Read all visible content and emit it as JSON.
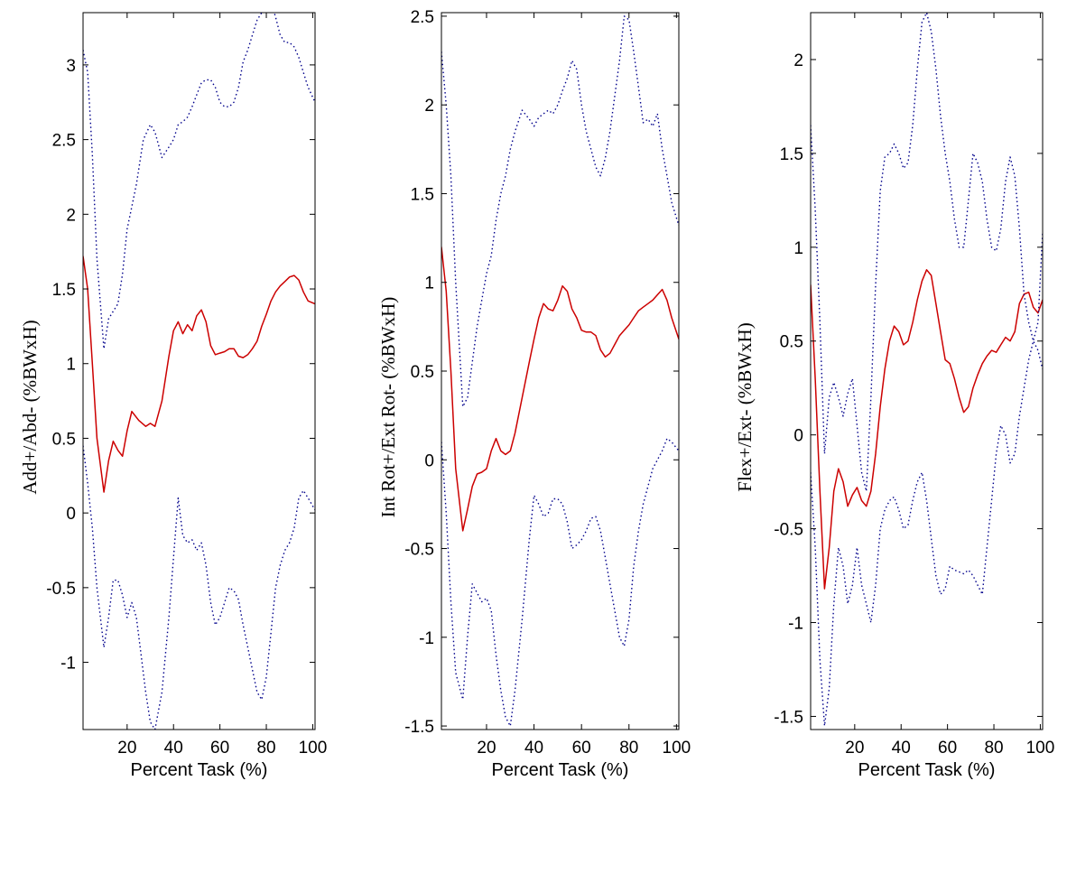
{
  "chart_data": [
    {
      "type": "line",
      "xlabel": "Percent Task (%)",
      "ylabel": "Add+/Abd- (%BWxH)",
      "xlim": [
        1,
        101
      ],
      "ylim": [
        -1.45,
        3.35
      ],
      "xticks": [
        20,
        40,
        60,
        80,
        100
      ],
      "yticks": [
        -1,
        -0.5,
        0,
        0.5,
        1,
        1.5,
        2,
        2.5,
        3
      ],
      "series": [
        {
          "style": "solid",
          "color": "#cc0000",
          "x": [
            1,
            3,
            5,
            7,
            10,
            12,
            14,
            16,
            18,
            20,
            22,
            25,
            28,
            30,
            32,
            35,
            38,
            40,
            42,
            44,
            46,
            48,
            50,
            52,
            54,
            56,
            58,
            60,
            62,
            64,
            66,
            68,
            70,
            72,
            74,
            76,
            78,
            80,
            82,
            84,
            86,
            88,
            90,
            92,
            94,
            96,
            98,
            101
          ],
          "y": [
            1.72,
            1.5,
            1.0,
            0.5,
            0.14,
            0.35,
            0.48,
            0.42,
            0.38,
            0.55,
            0.68,
            0.62,
            0.58,
            0.6,
            0.58,
            0.75,
            1.05,
            1.22,
            1.28,
            1.2,
            1.26,
            1.22,
            1.32,
            1.36,
            1.28,
            1.12,
            1.06,
            1.07,
            1.08,
            1.1,
            1.1,
            1.05,
            1.04,
            1.06,
            1.1,
            1.15,
            1.25,
            1.33,
            1.42,
            1.48,
            1.52,
            1.55,
            1.58,
            1.59,
            1.56,
            1.48,
            1.42,
            1.4
          ]
        },
        {
          "style": "dotted",
          "color": "#00008b",
          "x": [
            1,
            3,
            5,
            7,
            10,
            12,
            14,
            16,
            18,
            20,
            22,
            24,
            27,
            30,
            32,
            35,
            38,
            40,
            42,
            44,
            46,
            48,
            50,
            52,
            54,
            56,
            58,
            60,
            62,
            64,
            66,
            68,
            70,
            72,
            74,
            76,
            78,
            80,
            82,
            84,
            86,
            88,
            90,
            92,
            94,
            96,
            98,
            101
          ],
          "y": [
            3.1,
            2.95,
            2.4,
            1.7,
            1.1,
            1.3,
            1.35,
            1.4,
            1.6,
            1.9,
            2.05,
            2.2,
            2.5,
            2.6,
            2.55,
            2.38,
            2.45,
            2.5,
            2.6,
            2.62,
            2.65,
            2.72,
            2.8,
            2.88,
            2.9,
            2.9,
            2.85,
            2.75,
            2.72,
            2.72,
            2.75,
            2.85,
            3.02,
            3.1,
            3.2,
            3.3,
            3.35,
            3.4,
            3.42,
            3.32,
            3.2,
            3.15,
            3.15,
            3.12,
            3.05,
            2.95,
            2.85,
            2.75
          ]
        },
        {
          "style": "dotted",
          "color": "#00008b",
          "x": [
            1,
            3,
            5,
            7,
            10,
            12,
            14,
            16,
            18,
            20,
            22,
            24,
            26,
            28,
            30,
            32,
            35,
            38,
            40,
            42,
            44,
            46,
            48,
            50,
            52,
            54,
            56,
            58,
            60,
            62,
            64,
            66,
            68,
            70,
            72,
            74,
            76,
            78,
            80,
            82,
            84,
            86,
            88,
            90,
            92,
            94,
            96,
            98,
            101
          ],
          "y": [
            0.45,
            0.2,
            -0.1,
            -0.5,
            -0.9,
            -0.7,
            -0.45,
            -0.45,
            -0.55,
            -0.7,
            -0.6,
            -0.7,
            -0.95,
            -1.2,
            -1.4,
            -1.45,
            -1.2,
            -0.7,
            -0.3,
            0.1,
            -0.15,
            -0.2,
            -0.18,
            -0.25,
            -0.2,
            -0.35,
            -0.6,
            -0.75,
            -0.7,
            -0.6,
            -0.5,
            -0.52,
            -0.58,
            -0.75,
            -0.9,
            -1.05,
            -1.2,
            -1.25,
            -1.1,
            -0.8,
            -0.5,
            -0.35,
            -0.25,
            -0.2,
            -0.1,
            0.1,
            0.15,
            0.1,
            0.02
          ]
        }
      ]
    },
    {
      "type": "line",
      "xlabel": "Percent Task (%)",
      "ylabel": "Int Rot+/Ext Rot- (%BWxH)",
      "xlim": [
        1,
        101
      ],
      "ylim": [
        -1.52,
        2.52
      ],
      "xticks": [
        20,
        40,
        60,
        80,
        100
      ],
      "yticks": [
        -1.5,
        -1,
        -0.5,
        0,
        0.5,
        1,
        1.5,
        2,
        2.5
      ],
      "series": [
        {
          "style": "solid",
          "color": "#cc0000",
          "x": [
            1,
            3,
            5,
            7,
            10,
            12,
            14,
            16,
            18,
            20,
            22,
            24,
            26,
            28,
            30,
            32,
            35,
            38,
            40,
            42,
            44,
            46,
            48,
            50,
            52,
            54,
            56,
            58,
            60,
            62,
            64,
            66,
            68,
            70,
            72,
            74,
            76,
            78,
            80,
            82,
            84,
            86,
            88,
            90,
            92,
            94,
            96,
            98,
            101
          ],
          "y": [
            1.2,
            0.95,
            0.5,
            -0.05,
            -0.4,
            -0.28,
            -0.15,
            -0.08,
            -0.07,
            -0.05,
            0.05,
            0.12,
            0.05,
            0.03,
            0.05,
            0.15,
            0.35,
            0.55,
            0.68,
            0.8,
            0.88,
            0.85,
            0.84,
            0.9,
            0.98,
            0.95,
            0.85,
            0.8,
            0.73,
            0.72,
            0.72,
            0.7,
            0.62,
            0.58,
            0.6,
            0.65,
            0.7,
            0.73,
            0.76,
            0.8,
            0.84,
            0.86,
            0.88,
            0.9,
            0.93,
            0.96,
            0.9,
            0.8,
            0.68
          ]
        },
        {
          "style": "dotted",
          "color": "#00008b",
          "x": [
            1,
            3,
            5,
            7,
            10,
            12,
            14,
            16,
            18,
            20,
            22,
            24,
            26,
            28,
            30,
            32,
            35,
            38,
            40,
            42,
            44,
            46,
            48,
            50,
            52,
            54,
            56,
            58,
            60,
            62,
            64,
            66,
            68,
            70,
            72,
            74,
            76,
            78,
            80,
            82,
            84,
            86,
            88,
            90,
            92,
            94,
            96,
            98,
            101
          ],
          "y": [
            2.3,
            2.0,
            1.6,
            1.0,
            0.3,
            0.35,
            0.55,
            0.75,
            0.9,
            1.05,
            1.15,
            1.35,
            1.5,
            1.6,
            1.75,
            1.85,
            1.97,
            1.92,
            1.88,
            1.93,
            1.95,
            1.97,
            1.95,
            2.0,
            2.08,
            2.15,
            2.25,
            2.2,
            2.0,
            1.85,
            1.75,
            1.65,
            1.6,
            1.7,
            1.85,
            2.05,
            2.25,
            2.5,
            2.48,
            2.3,
            2.1,
            1.9,
            1.92,
            1.88,
            1.95,
            1.75,
            1.6,
            1.45,
            1.32
          ]
        },
        {
          "style": "dotted",
          "color": "#00008b",
          "x": [
            1,
            3,
            5,
            7,
            10,
            12,
            14,
            16,
            18,
            20,
            22,
            24,
            26,
            28,
            30,
            32,
            35,
            38,
            40,
            42,
            44,
            46,
            48,
            50,
            52,
            54,
            56,
            58,
            60,
            62,
            64,
            66,
            68,
            70,
            72,
            74,
            76,
            78,
            80,
            82,
            84,
            86,
            88,
            90,
            92,
            94,
            96,
            98,
            101
          ],
          "y": [
            0.1,
            -0.3,
            -0.8,
            -1.2,
            -1.35,
            -1.0,
            -0.7,
            -0.75,
            -0.8,
            -0.78,
            -0.85,
            -1.1,
            -1.3,
            -1.45,
            -1.5,
            -1.3,
            -0.9,
            -0.45,
            -0.2,
            -0.25,
            -0.32,
            -0.3,
            -0.22,
            -0.22,
            -0.25,
            -0.35,
            -0.5,
            -0.48,
            -0.45,
            -0.4,
            -0.33,
            -0.32,
            -0.4,
            -0.55,
            -0.7,
            -0.85,
            -1.0,
            -1.05,
            -0.9,
            -0.6,
            -0.4,
            -0.25,
            -0.15,
            -0.05,
            0.0,
            0.05,
            0.12,
            0.1,
            0.05
          ]
        }
      ]
    },
    {
      "type": "line",
      "xlabel": "Percent Task (%)",
      "ylabel": "Flex+/Ext- (%BWxH)",
      "xlim": [
        1,
        101
      ],
      "ylim": [
        -1.57,
        2.25
      ],
      "xticks": [
        20,
        40,
        60,
        80,
        100
      ],
      "yticks": [
        -1.5,
        -1,
        -0.5,
        0,
        0.5,
        1,
        1.5,
        2
      ],
      "series": [
        {
          "style": "solid",
          "color": "#cc0000",
          "x": [
            1,
            3,
            5,
            7,
            9,
            11,
            13,
            15,
            17,
            19,
            21,
            23,
            25,
            27,
            29,
            31,
            33,
            35,
            37,
            39,
            41,
            43,
            45,
            47,
            49,
            51,
            53,
            55,
            57,
            59,
            61,
            63,
            65,
            67,
            69,
            71,
            73,
            75,
            77,
            79,
            81,
            83,
            85,
            87,
            89,
            91,
            93,
            95,
            97,
            99,
            101
          ],
          "y": [
            0.8,
            0.3,
            -0.3,
            -0.82,
            -0.6,
            -0.3,
            -0.18,
            -0.25,
            -0.38,
            -0.32,
            -0.28,
            -0.35,
            -0.38,
            -0.3,
            -0.1,
            0.15,
            0.35,
            0.5,
            0.58,
            0.55,
            0.48,
            0.5,
            0.6,
            0.72,
            0.82,
            0.88,
            0.85,
            0.7,
            0.55,
            0.4,
            0.38,
            0.3,
            0.2,
            0.12,
            0.15,
            0.25,
            0.32,
            0.38,
            0.42,
            0.45,
            0.44,
            0.48,
            0.52,
            0.5,
            0.55,
            0.7,
            0.75,
            0.76,
            0.68,
            0.65,
            0.72
          ]
        },
        {
          "style": "dotted",
          "color": "#00008b",
          "x": [
            1,
            3,
            5,
            7,
            9,
            11,
            13,
            15,
            17,
            19,
            21,
            23,
            25,
            27,
            29,
            31,
            33,
            35,
            37,
            39,
            41,
            43,
            45,
            47,
            49,
            51,
            53,
            55,
            57,
            59,
            61,
            63,
            65,
            67,
            69,
            71,
            73,
            75,
            77,
            79,
            81,
            83,
            85,
            87,
            89,
            91,
            93,
            95,
            97,
            99,
            101
          ],
          "y": [
            1.65,
            1.2,
            0.6,
            -0.1,
            0.2,
            0.28,
            0.2,
            0.1,
            0.22,
            0.3,
            0.05,
            -0.2,
            -0.3,
            0.2,
            0.8,
            1.3,
            1.48,
            1.5,
            1.55,
            1.5,
            1.42,
            1.45,
            1.65,
            1.95,
            2.2,
            2.25,
            2.15,
            1.95,
            1.7,
            1.5,
            1.35,
            1.15,
            1.0,
            1.0,
            1.25,
            1.5,
            1.45,
            1.35,
            1.15,
            1.0,
            0.98,
            1.1,
            1.35,
            1.48,
            1.38,
            1.1,
            0.75,
            0.6,
            0.5,
            0.6,
            1.08
          ]
        },
        {
          "style": "dotted",
          "color": "#00008b",
          "x": [
            1,
            3,
            5,
            7,
            9,
            11,
            13,
            15,
            17,
            19,
            21,
            23,
            25,
            27,
            29,
            31,
            33,
            35,
            37,
            39,
            41,
            43,
            45,
            47,
            49,
            51,
            53,
            55,
            57,
            59,
            61,
            63,
            65,
            67,
            69,
            71,
            73,
            75,
            77,
            79,
            81,
            83,
            85,
            87,
            89,
            91,
            93,
            95,
            97,
            99,
            101
          ],
          "y": [
            -0.2,
            -0.6,
            -1.2,
            -1.55,
            -1.35,
            -0.9,
            -0.6,
            -0.7,
            -0.9,
            -0.8,
            -0.6,
            -0.8,
            -0.9,
            -1.0,
            -0.8,
            -0.5,
            -0.4,
            -0.35,
            -0.33,
            -0.4,
            -0.5,
            -0.48,
            -0.35,
            -0.25,
            -0.2,
            -0.35,
            -0.55,
            -0.75,
            -0.85,
            -0.82,
            -0.7,
            -0.72,
            -0.73,
            -0.74,
            -0.72,
            -0.75,
            -0.8,
            -0.85,
            -0.6,
            -0.35,
            -0.1,
            0.05,
            0.0,
            -0.15,
            -0.1,
            0.1,
            0.25,
            0.4,
            0.5,
            0.45,
            0.35
          ]
        }
      ]
    }
  ]
}
